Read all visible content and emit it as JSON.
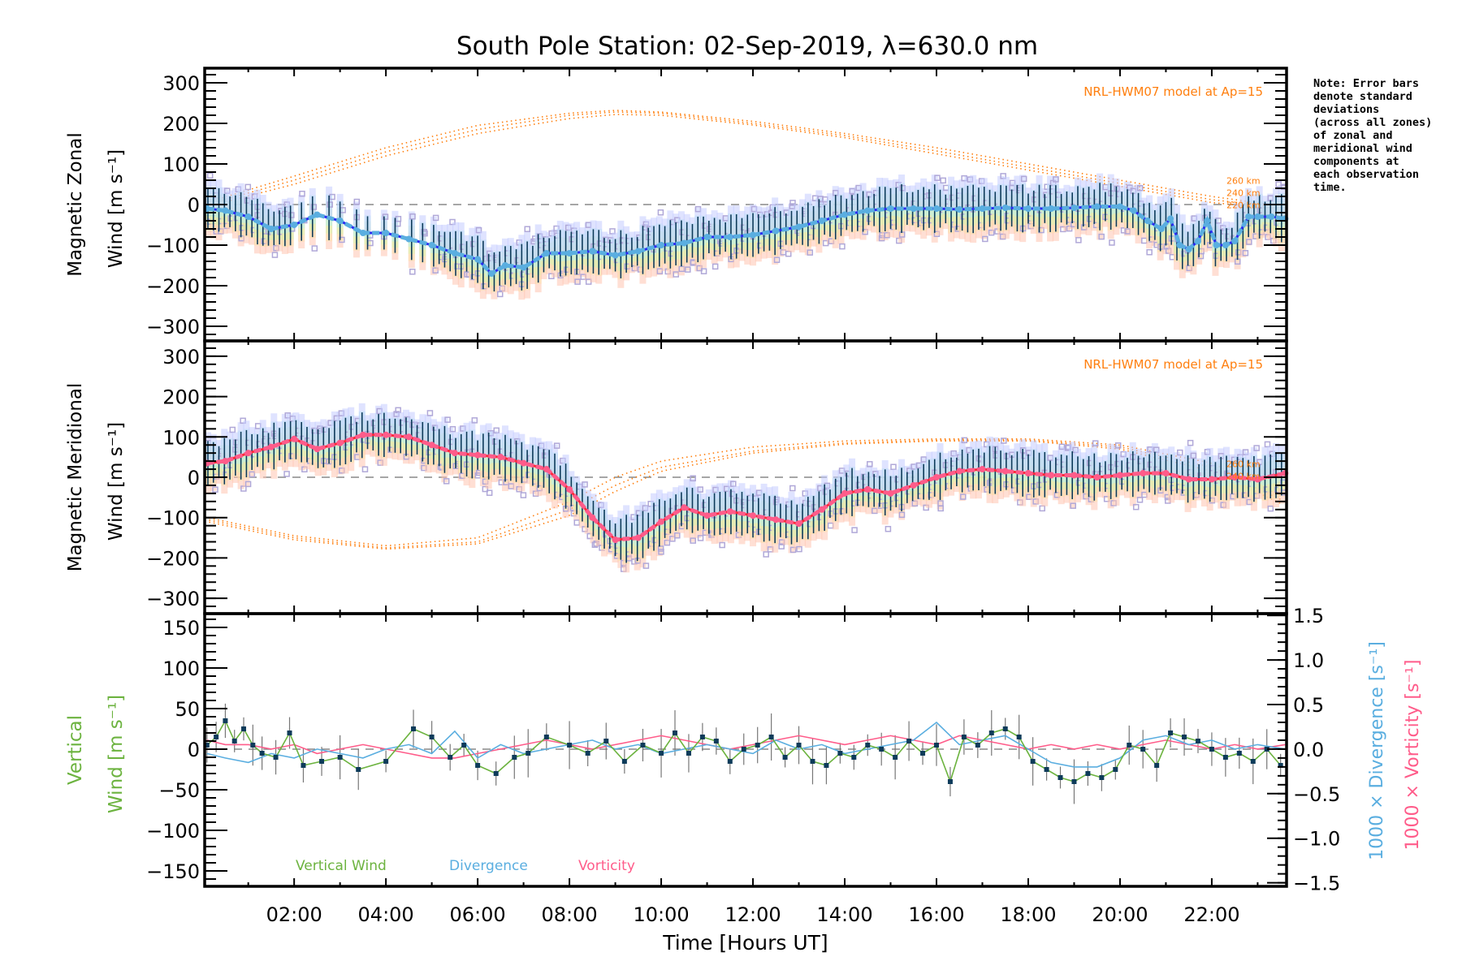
{
  "title": "South Pole Station: 02-Sep-2019, λ=630.0 nm",
  "note": "Note: Error bars\ndenote standard\ndeviations\n(across all zones)\nof zonal and\nmeridional wind\ncomponents at\neach observation\ntime.",
  "colors": {
    "zonal_line": "#5aaee0",
    "zonal_line_dark": "#2a2cf0",
    "meridional_line": "#ff5c8a",
    "meridional_line_dark": "#ff2a3a",
    "vertical": "#6cb33f",
    "divergence": "#5aaee0",
    "vorticity": "#ff5c8a",
    "model": "#ff7f0e",
    "zone_points": "#b0a8d8",
    "error_bar": "#0d3b5a",
    "points": "#0d3b5a"
  },
  "chart_data": [
    {
      "type": "line",
      "id": "zonal",
      "ylabel_line1": "Magnetic Zonal",
      "ylabel_line2": "Wind [m s⁻¹]",
      "xlim": [
        0.05,
        23.63
      ],
      "ylim": [
        -336,
        336
      ],
      "yticks": [
        300,
        200,
        100,
        0,
        -100,
        -200,
        -300
      ],
      "ytick_labels": [
        "300",
        "200",
        "100",
        "0",
        "−100",
        "−200",
        "−300"
      ],
      "model_label": "NRL-HWM07 model at Ap=15",
      "model_altitudes": [
        "260 km",
        "240 km",
        "220 km"
      ],
      "series": [
        {
          "name": "Zonal wind (mean)",
          "x": [
            0.1,
            0.5,
            1.0,
            1.5,
            2.0,
            2.5,
            3.0,
            3.5,
            4.0,
            4.5,
            5.0,
            5.5,
            6.0,
            6.3,
            6.6,
            7.0,
            7.5,
            8.0,
            8.5,
            9.0,
            9.5,
            10.0,
            10.5,
            11.0,
            11.5,
            12.0,
            12.5,
            13.0,
            13.5,
            14.0,
            14.5,
            15.0,
            15.5,
            16.0,
            16.5,
            17.0,
            17.5,
            18.0,
            18.5,
            19.0,
            19.5,
            20.0,
            20.3,
            20.6,
            20.9,
            21.1,
            21.3,
            21.5,
            21.7,
            21.9,
            22.1,
            22.3,
            22.5,
            22.8,
            23.0,
            23.3,
            23.6
          ],
          "y": [
            -10,
            -15,
            -30,
            -60,
            -50,
            -25,
            -40,
            -70,
            -70,
            -85,
            -100,
            -120,
            -135,
            -170,
            -150,
            -155,
            -120,
            -120,
            -115,
            -125,
            -115,
            -100,
            -95,
            -80,
            -80,
            -75,
            -65,
            -55,
            -40,
            -25,
            -15,
            -10,
            -10,
            -10,
            -12,
            -10,
            -8,
            -10,
            -10,
            -8,
            -5,
            -5,
            -15,
            -40,
            -60,
            -35,
            -100,
            -110,
            -90,
            -40,
            -100,
            -100,
            -90,
            -30,
            -30,
            -30,
            -35
          ]
        },
        {
          "name": "NRL-HWM07 260 km",
          "x": [
            0.1,
            2,
            4,
            6,
            8,
            9,
            10,
            12,
            14,
            16,
            18,
            20,
            22,
            23.6
          ],
          "y": [
            5,
            70,
            140,
            195,
            225,
            232,
            228,
            205,
            175,
            140,
            100,
            60,
            20,
            -5
          ]
        },
        {
          "name": "NRL-HWM07 240 km",
          "x": [
            0.1,
            2,
            4,
            6,
            8,
            9,
            10,
            12,
            14,
            16,
            18,
            20,
            22,
            23.6
          ],
          "y": [
            0,
            60,
            130,
            185,
            220,
            228,
            225,
            200,
            170,
            132,
            92,
            52,
            12,
            -8
          ]
        },
        {
          "name": "NRL-HWM07 220 km",
          "x": [
            0.1,
            2,
            4,
            6,
            8,
            9,
            10,
            12,
            14,
            16,
            18,
            20,
            22,
            23.6
          ],
          "y": [
            -5,
            50,
            120,
            175,
            212,
            222,
            220,
            196,
            165,
            125,
            85,
            45,
            5,
            -12
          ]
        }
      ]
    },
    {
      "type": "line",
      "id": "meridional",
      "ylabel_line1": "Magnetic Meridional",
      "ylabel_line2": "Wind [m s⁻¹]",
      "xlim": [
        0.05,
        23.63
      ],
      "ylim": [
        -338,
        338
      ],
      "yticks": [
        300,
        200,
        100,
        0,
        -100,
        -200,
        -300
      ],
      "ytick_labels": [
        "300",
        "200",
        "100",
        "0",
        "−100",
        "−200",
        "−300"
      ],
      "model_label": "NRL-HWM07 model at Ap=15",
      "model_altitudes": [
        "260 km",
        "240 km"
      ],
      "series": [
        {
          "name": "Meridional wind (mean)",
          "x": [
            0.1,
            0.5,
            1.0,
            1.5,
            2.0,
            2.5,
            3.0,
            3.5,
            4.0,
            4.5,
            5.0,
            5.5,
            6.0,
            6.5,
            7.0,
            7.5,
            8.0,
            8.5,
            9.0,
            9.5,
            10.0,
            10.5,
            11.0,
            11.5,
            12.0,
            12.5,
            13.0,
            13.5,
            14.0,
            14.5,
            15.0,
            15.5,
            16.0,
            16.5,
            17.0,
            17.5,
            18.0,
            18.5,
            19.0,
            19.5,
            20.0,
            20.5,
            21.0,
            21.5,
            22.0,
            22.5,
            23.0,
            23.6
          ],
          "y": [
            35,
            40,
            60,
            75,
            95,
            70,
            85,
            105,
            105,
            100,
            80,
            60,
            55,
            50,
            35,
            20,
            -30,
            -100,
            -155,
            -150,
            -110,
            -75,
            -95,
            -85,
            -95,
            -105,
            -115,
            -80,
            -40,
            -30,
            -40,
            -20,
            0,
            15,
            20,
            15,
            10,
            5,
            5,
            0,
            5,
            10,
            10,
            -5,
            -5,
            0,
            -5,
            10
          ]
        },
        {
          "name": "NRL-HWM07 260 km",
          "x": [
            0.1,
            2,
            4,
            6,
            8,
            9,
            10,
            12,
            14,
            16,
            18,
            20,
            22,
            23.6
          ],
          "y": [
            -100,
            -145,
            -170,
            -150,
            -60,
            0,
            40,
            75,
            90,
            95,
            95,
            80,
            35,
            -50
          ]
        },
        {
          "name": "NRL-HWM07 240 km",
          "x": [
            0.1,
            2,
            4,
            6,
            8,
            9,
            10,
            12,
            14,
            16,
            18,
            20,
            22,
            23.6
          ],
          "y": [
            -105,
            -150,
            -175,
            -160,
            -80,
            -20,
            25,
            65,
            85,
            92,
            92,
            75,
            25,
            -60
          ]
        },
        {
          "name": "NRL-HWM07 220 km",
          "x": [
            0.1,
            2,
            4,
            6,
            8,
            9,
            10,
            12,
            14,
            16,
            18,
            20,
            22,
            23.6
          ],
          "y": [
            -110,
            -155,
            -178,
            -165,
            -95,
            -35,
            15,
            60,
            82,
            90,
            90,
            70,
            15,
            -70
          ]
        }
      ]
    },
    {
      "type": "line",
      "id": "vertical",
      "ylabel_line1": "Vertical",
      "ylabel_line2": "Wind [m s⁻¹]",
      "xlabel": "Time [Hours UT]",
      "xlim": [
        0.05,
        23.63
      ],
      "xticks": [
        2,
        4,
        6,
        8,
        10,
        12,
        14,
        16,
        18,
        20,
        22
      ],
      "xtick_labels": [
        "02:00",
        "04:00",
        "06:00",
        "08:00",
        "10:00",
        "12:00",
        "14:00",
        "16:00",
        "18:00",
        "20:00",
        "22:00"
      ],
      "ylim": [
        -169,
        167
      ],
      "yticks": [
        150,
        100,
        50,
        0,
        -50,
        -100,
        -150
      ],
      "ytick_labels": [
        "150",
        "100",
        "50",
        "0",
        "−50",
        "−100",
        "−150"
      ],
      "y2label_div": "1000 × Divergence [s⁻¹]",
      "y2label_vor": "1000 × Vorticity [s⁻¹]",
      "y2lim": [
        -1.54,
        1.52
      ],
      "y2ticks": [
        1.5,
        1.0,
        0.5,
        0.0,
        -0.5,
        -1.0,
        -1.5
      ],
      "y2tick_labels": [
        "1.5",
        "1.0",
        "0.5",
        "0.0",
        "−0.5",
        "−1.0",
        "−1.5"
      ],
      "legend": [
        "Vertical Wind",
        "Divergence",
        "Vorticity"
      ],
      "series": [
        {
          "name": "Vertical Wind",
          "x": [
            0.1,
            0.3,
            0.5,
            0.7,
            0.9,
            1.1,
            1.3,
            1.6,
            1.9,
            2.2,
            2.6,
            3.0,
            3.4,
            4.0,
            4.6,
            5.0,
            5.4,
            5.7,
            6.0,
            6.4,
            6.8,
            7.1,
            7.5,
            8.0,
            8.4,
            8.8,
            9.2,
            9.6,
            10.0,
            10.3,
            10.6,
            10.9,
            11.2,
            11.5,
            11.8,
            12.1,
            12.4,
            12.7,
            13.0,
            13.3,
            13.6,
            13.9,
            14.2,
            14.5,
            14.8,
            15.1,
            15.4,
            15.7,
            16.0,
            16.3,
            16.6,
            16.9,
            17.2,
            17.5,
            17.8,
            18.1,
            18.4,
            18.7,
            19.0,
            19.3,
            19.6,
            19.9,
            20.2,
            20.5,
            20.8,
            21.1,
            21.4,
            21.7,
            22.0,
            22.3,
            22.6,
            22.9,
            23.2,
            23.5
          ],
          "y": [
            5,
            15,
            35,
            10,
            25,
            5,
            -5,
            -10,
            20,
            -20,
            -15,
            -10,
            -25,
            -15,
            25,
            15,
            -10,
            5,
            -20,
            -30,
            -10,
            -5,
            15,
            5,
            -5,
            10,
            -15,
            5,
            -5,
            20,
            -5,
            15,
            10,
            -15,
            0,
            5,
            15,
            -10,
            5,
            -15,
            -20,
            -5,
            -10,
            5,
            0,
            -10,
            10,
            -5,
            5,
            -40,
            15,
            5,
            20,
            25,
            15,
            -15,
            -25,
            -35,
            -40,
            -30,
            -35,
            -25,
            5,
            0,
            -20,
            20,
            15,
            10,
            0,
            -10,
            -5,
            -15,
            0,
            -20
          ]
        },
        {
          "name": "Divergence",
          "x": [
            0.1,
            0.5,
            1.0,
            1.5,
            2.0,
            2.5,
            3.0,
            3.5,
            4.0,
            4.5,
            5.0,
            5.5,
            6.0,
            6.5,
            7.0,
            7.5,
            8.0,
            8.5,
            9.0,
            9.5,
            10.0,
            10.5,
            11.0,
            11.5,
            12.0,
            12.5,
            13.0,
            13.5,
            14.0,
            14.5,
            15.0,
            15.5,
            16.0,
            16.5,
            17.0,
            17.5,
            18.0,
            18.5,
            19.0,
            19.5,
            20.0,
            20.5,
            21.0,
            21.5,
            22.0,
            22.5,
            23.0,
            23.6
          ],
          "y": [
            -0.05,
            -0.1,
            -0.15,
            -0.05,
            -0.1,
            0.0,
            -0.05,
            -0.1,
            0.0,
            0.05,
            -0.05,
            0.2,
            -0.1,
            0.05,
            -0.05,
            0.0,
            0.05,
            0.1,
            0.0,
            0.05,
            -0.05,
            0.0,
            0.05,
            0.0,
            -0.05,
            0.1,
            0.0,
            0.05,
            -0.05,
            0.0,
            0.05,
            0.1,
            0.3,
            0.05,
            0.1,
            0.15,
            0.0,
            -0.15,
            -0.2,
            -0.2,
            -0.1,
            0.1,
            0.15,
            0.05,
            0.1,
            0.0,
            0.05,
            0.0
          ]
        },
        {
          "name": "Vorticity",
          "x": [
            0.1,
            0.5,
            1.0,
            1.5,
            2.0,
            2.5,
            3.0,
            3.5,
            4.0,
            4.5,
            5.0,
            5.5,
            6.0,
            6.5,
            7.0,
            7.5,
            8.0,
            8.5,
            9.0,
            9.5,
            10.0,
            10.5,
            11.0,
            11.5,
            12.0,
            12.5,
            13.0,
            13.5,
            14.0,
            14.5,
            15.0,
            15.5,
            16.0,
            16.5,
            17.0,
            17.5,
            18.0,
            18.5,
            19.0,
            19.5,
            20.0,
            20.5,
            21.0,
            21.5,
            22.0,
            22.5,
            23.0,
            23.6
          ],
          "y": [
            0.1,
            0.05,
            0.05,
            0.0,
            0.05,
            -0.05,
            0.0,
            0.05,
            0.0,
            -0.05,
            -0.1,
            -0.1,
            -0.05,
            0.0,
            0.05,
            0.1,
            0.05,
            0.0,
            0.05,
            0.1,
            0.15,
            0.1,
            0.05,
            0.0,
            0.05,
            0.1,
            0.15,
            0.1,
            0.05,
            0.1,
            0.15,
            0.1,
            0.05,
            0.15,
            0.1,
            0.05,
            0.0,
            0.05,
            0.0,
            0.05,
            0.0,
            0.05,
            0.1,
            0.05,
            0.0,
            0.05,
            0.0,
            0.05
          ]
        }
      ]
    }
  ]
}
